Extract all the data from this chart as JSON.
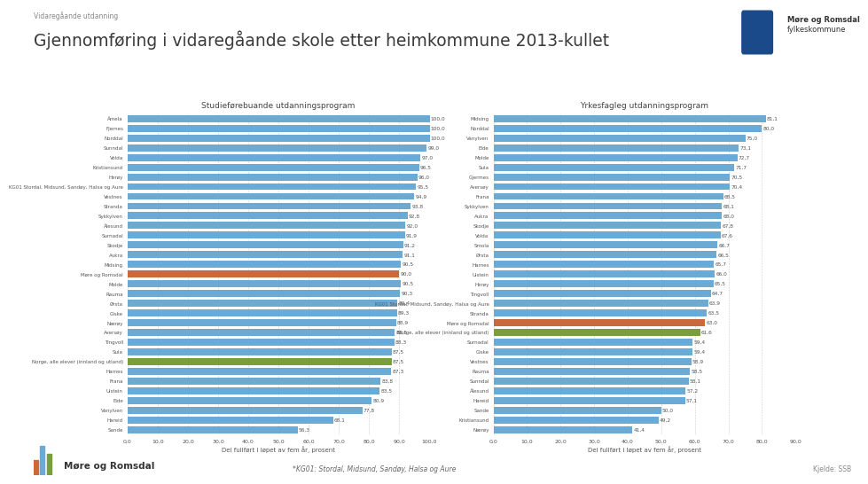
{
  "title_top": "Vidaregåande utdanning",
  "title_main": "Gjennomføring i vidaregåande skole etter heimkommune 2013-kullet",
  "subtitle_left": "Studieførebuande utdanningsprogram",
  "subtitle_right": "Yrkesfagleg utdanningsprogram",
  "xlabel": "Del fullført i løpet av fem år, prosent",
  "footer_left": "Møre og Romsdal",
  "footer_note": "*KG01: Stordal, Midsund, Sandøy, Halsa og Aure",
  "footer_right": "Kjelde: SSB",
  "left_categories": [
    "Åmela",
    "Fjernes",
    "Norddal",
    "Sunndal",
    "Volda",
    "Kristiansund",
    "Herøy",
    "KG01 Stordal, Midsund, Sandøy, Halsa og Aure",
    "Vestnes",
    "Stranda",
    "Sykkylven",
    "Ålesund",
    "Surnadal",
    "Skodje",
    "Aukra",
    "Midsing",
    "Møre og Romsdal",
    "Molde",
    "Rauma",
    "Ørsta",
    "Giske",
    "Nærøy",
    "Aversøy",
    "Tingvoll",
    "Sula",
    "Norge, alle elever (innland og utland)",
    "Harnes",
    "Frana",
    "Ulstein",
    "Eide",
    "Vanylven",
    "Hareid",
    "Sande"
  ],
  "left_values": [
    100.0,
    100.0,
    100.0,
    99.0,
    97.0,
    96.5,
    96.0,
    95.5,
    94.9,
    93.8,
    92.8,
    92.0,
    91.9,
    91.2,
    91.1,
    90.5,
    90.0,
    90.5,
    90.3,
    89.4,
    89.3,
    88.9,
    88.5,
    88.3,
    87.5,
    87.5,
    87.3,
    83.8,
    83.5,
    80.9,
    77.8,
    68.1,
    56.3
  ],
  "left_special": {
    "Møre og Romsdal": "#c8693e",
    "Norge, alle elever (innland og utland)": "#7a9e3b"
  },
  "left_default_color": "#6aaad4",
  "right_categories": [
    "Midsing",
    "Norddal",
    "Vanylven",
    "Elde",
    "Molde",
    "Sula",
    "Gjermes",
    "Aversøy",
    "Frana",
    "Sykkylven",
    "Aukra",
    "Skodje",
    "Volda",
    "Smola",
    "Ørsta",
    "Harnes",
    "Ulstein",
    "Herøy",
    "Tingvoll",
    "KG01 Stordal, Midsund, Sandøy, Halsa og Aure",
    "Stranda",
    "Møre og Romsdal",
    "Norge, alle elever (innland og utland)",
    "Surnadal",
    "Giske",
    "Vestnes",
    "Rauma",
    "Sunndal",
    "Ålesund",
    "Hareid",
    "Sande",
    "Kristiansund",
    "Nærøy"
  ],
  "right_values": [
    81.1,
    80.0,
    75.0,
    73.1,
    72.7,
    71.7,
    70.5,
    70.4,
    68.5,
    68.1,
    68.0,
    67.8,
    67.6,
    66.7,
    66.5,
    65.7,
    66.0,
    65.5,
    64.7,
    63.9,
    63.5,
    63.0,
    61.6,
    59.4,
    59.4,
    58.9,
    58.5,
    58.1,
    57.2,
    57.1,
    50.0,
    49.2,
    41.4
  ],
  "right_special": {
    "Møre og Romsdal": "#c8693e",
    "Norge, alle elever (innland og utland)": "#7a9e3b"
  },
  "right_default_color": "#6aaad4",
  "bg_color": "#ffffff",
  "bar_height": 0.72
}
